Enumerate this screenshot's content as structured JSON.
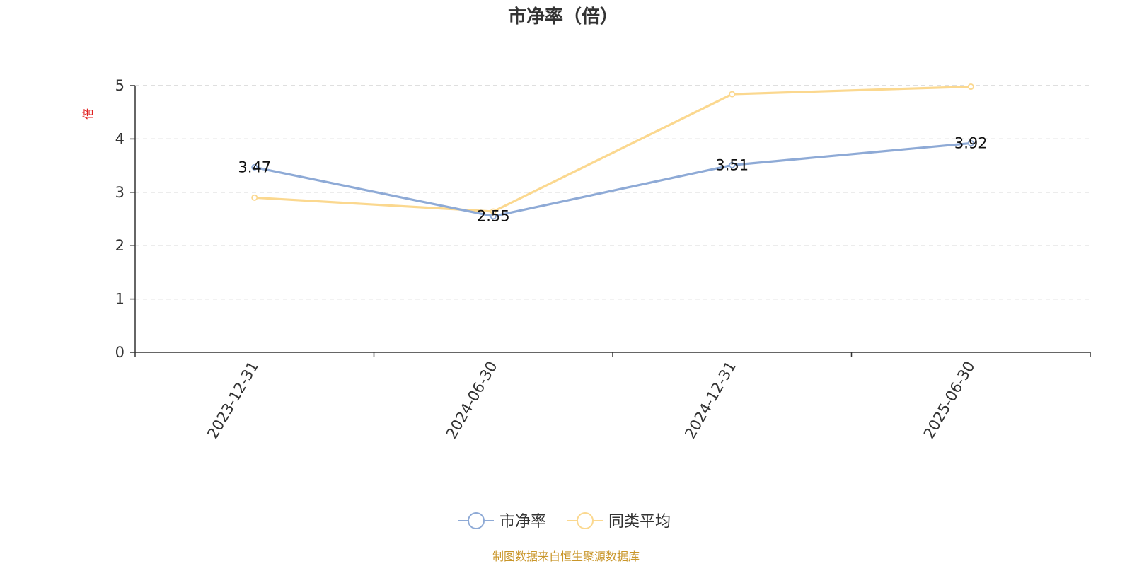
{
  "chart_data": {
    "type": "line",
    "title": "市净率（倍）",
    "ylabel": "倍",
    "xlabel": "",
    "categories": [
      "2023-12-31",
      "2024-06-30",
      "2024-12-31",
      "2025-06-30"
    ],
    "ylim": [
      0,
      5
    ],
    "yticks": [
      0,
      1,
      2,
      3,
      4,
      5
    ],
    "grid": true,
    "legend_position": "bottom-center",
    "series": [
      {
        "name": "市净率",
        "values": [
          3.47,
          2.55,
          3.51,
          3.92
        ],
        "color": "#8eaad6",
        "show_labels": true,
        "labels": [
          "3.47",
          "2.55",
          "3.51",
          "3.92"
        ]
      },
      {
        "name": "同类平均",
        "values": [
          2.9,
          2.64,
          4.84,
          4.98
        ],
        "color": "#fbd88f",
        "show_labels": false
      }
    ],
    "ylabel_color": "#e02020",
    "source_color": "#c9962a"
  },
  "footer": {
    "source": "制图数据来自恒生聚源数据库"
  }
}
